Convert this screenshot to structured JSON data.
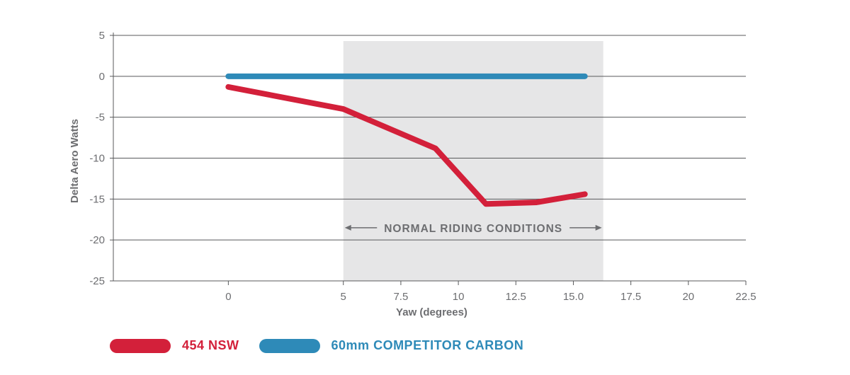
{
  "chart_data": {
    "type": "line",
    "xlabel": "Yaw (degrees)",
    "ylabel": "Delta Aero Watts",
    "xlim": [
      -5,
      22.5
    ],
    "ylim": [
      -25,
      5
    ],
    "x_ticks": [
      "0",
      "5",
      "7.5",
      "10",
      "12.5",
      "15.0",
      "17.5",
      "20",
      "22.5"
    ],
    "y_ticks": [
      "5",
      "0",
      "-5",
      "-10",
      "-15",
      "-20",
      "-25"
    ],
    "grid": "horizontal",
    "shaded_region": {
      "x_start": 5,
      "x_end": 16.3,
      "label": "NORMAL RIDING CONDITIONS"
    },
    "series": [
      {
        "name": "454 NSW",
        "color": "#d3203a",
        "points": [
          [
            0,
            -1.3
          ],
          [
            5,
            -4.0
          ],
          [
            9.0,
            -8.8
          ],
          [
            11.2,
            -15.6
          ],
          [
            13.4,
            -15.4
          ],
          [
            15.5,
            -14.4
          ]
        ]
      },
      {
        "name": "60mm COMPETITOR CARBON",
        "color": "#2e8ab8",
        "points": [
          [
            0,
            0
          ],
          [
            5,
            0
          ],
          [
            10,
            0
          ],
          [
            15.5,
            0
          ]
        ]
      }
    ],
    "legend_position": "bottom-left"
  }
}
